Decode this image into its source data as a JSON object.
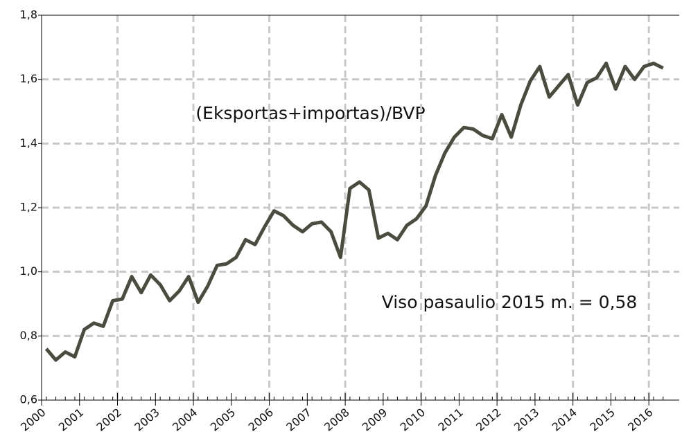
{
  "chart_data": {
    "type": "line",
    "annotations": [
      "(Eksportas+importas)/BVP",
      "Viso pasaulio 2015 m. = 0,58"
    ],
    "x": [
      2000.125,
      2000.375,
      2000.625,
      2000.875,
      2001.125,
      2001.375,
      2001.625,
      2001.875,
      2002.125,
      2002.375,
      2002.625,
      2002.875,
      2003.125,
      2003.375,
      2003.625,
      2003.875,
      2004.125,
      2004.375,
      2004.625,
      2004.875,
      2005.125,
      2005.375,
      2005.625,
      2005.875,
      2006.125,
      2006.375,
      2006.625,
      2006.875,
      2007.125,
      2007.375,
      2007.625,
      2007.875,
      2008.125,
      2008.375,
      2008.625,
      2008.875,
      2009.125,
      2009.375,
      2009.625,
      2009.875,
      2010.125,
      2010.375,
      2010.625,
      2010.875,
      2011.125,
      2011.375,
      2011.625,
      2011.875,
      2012.125,
      2012.375,
      2012.625,
      2012.875,
      2013.125,
      2013.375,
      2013.625,
      2013.875,
      2014.125,
      2014.375,
      2014.625,
      2014.875,
      2015.125,
      2015.375,
      2015.625,
      2015.875,
      2016.125,
      2016.375
    ],
    "series": [
      {
        "color": "#4b4b3f",
        "values": [
          0.76,
          0.725,
          0.75,
          0.735,
          0.82,
          0.84,
          0.83,
          0.91,
          0.915,
          0.985,
          0.935,
          0.99,
          0.96,
          0.91,
          0.94,
          0.985,
          0.905,
          0.955,
          1.02,
          1.025,
          1.045,
          1.1,
          1.085,
          1.14,
          1.19,
          1.175,
          1.145,
          1.125,
          1.15,
          1.155,
          1.125,
          1.045,
          1.26,
          1.28,
          1.255,
          1.105,
          1.12,
          1.1,
          1.145,
          1.165,
          1.205,
          1.3,
          1.37,
          1.42,
          1.45,
          1.445,
          1.425,
          1.415,
          1.49,
          1.42,
          1.52,
          1.595,
          1.64,
          1.545,
          1.58,
          1.615,
          1.52,
          1.59,
          1.605,
          1.65,
          1.57,
          1.64,
          1.6,
          1.64,
          1.65,
          1.635
        ]
      }
    ],
    "xlim": [
      2000,
      2016.8
    ],
    "xticks": [
      2000,
      2001,
      2002,
      2003,
      2004,
      2005,
      2006,
      2007,
      2008,
      2009,
      2010,
      2011,
      2012,
      2013,
      2014,
      2015,
      2016
    ],
    "ylim": [
      0.6,
      1.8
    ],
    "yticks": [
      {
        "value": 0.6,
        "label": "0,6"
      },
      {
        "value": 0.8,
        "label": "0,8"
      },
      {
        "value": 1.0,
        "label": "1,0"
      },
      {
        "value": 1.2,
        "label": "1,2"
      },
      {
        "value": 1.4,
        "label": "1,4"
      },
      {
        "value": 1.6,
        "label": "1,6"
      },
      {
        "value": 1.8,
        "label": "1,8"
      }
    ],
    "grid": true
  }
}
